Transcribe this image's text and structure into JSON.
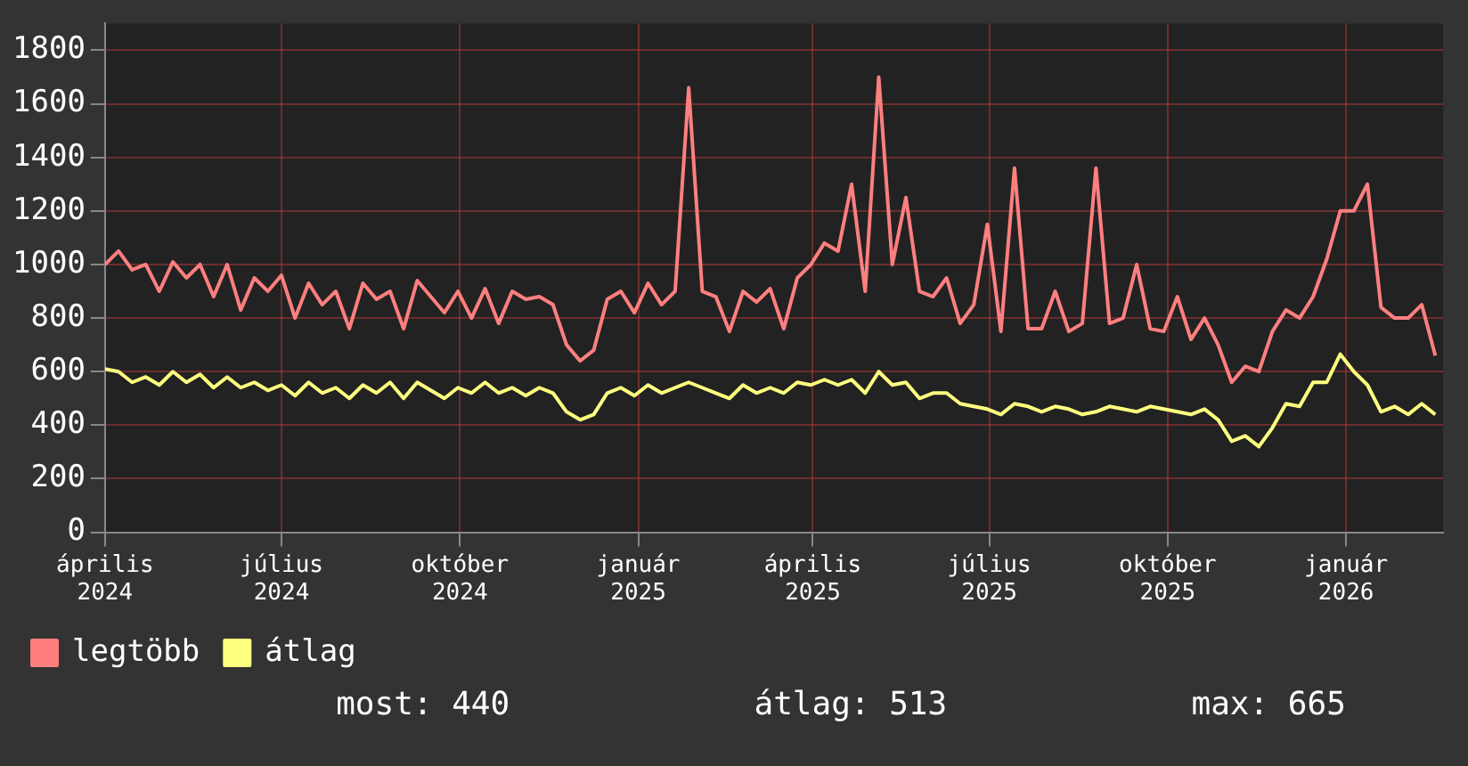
{
  "chart_data": {
    "type": "line",
    "x": [
      "2024-04-01",
      "2024-04-08",
      "2024-04-15",
      "2024-04-22",
      "2024-04-29",
      "2024-05-06",
      "2024-05-13",
      "2024-05-20",
      "2024-05-27",
      "2024-06-03",
      "2024-06-10",
      "2024-06-17",
      "2024-06-24",
      "2024-07-01",
      "2024-07-08",
      "2024-07-15",
      "2024-07-22",
      "2024-07-29",
      "2024-08-05",
      "2024-08-12",
      "2024-08-19",
      "2024-08-26",
      "2024-09-02",
      "2024-09-09",
      "2024-09-16",
      "2024-09-23",
      "2024-09-30",
      "2024-10-07",
      "2024-10-14",
      "2024-10-21",
      "2024-10-28",
      "2024-11-04",
      "2024-11-11",
      "2024-11-18",
      "2024-11-25",
      "2024-12-02",
      "2024-12-09",
      "2024-12-16",
      "2024-12-23",
      "2024-12-30",
      "2025-01-06",
      "2025-01-13",
      "2025-01-20",
      "2025-01-27",
      "2025-02-03",
      "2025-02-10",
      "2025-02-17",
      "2025-02-24",
      "2025-03-03",
      "2025-03-10",
      "2025-03-17",
      "2025-03-24",
      "2025-03-31",
      "2025-04-07",
      "2025-04-14",
      "2025-04-21",
      "2025-04-28",
      "2025-05-05",
      "2025-05-12",
      "2025-05-19",
      "2025-05-26",
      "2025-06-02",
      "2025-06-09",
      "2025-06-16",
      "2025-06-23",
      "2025-06-30",
      "2025-07-07",
      "2025-07-14",
      "2025-07-21",
      "2025-07-28",
      "2025-08-04",
      "2025-08-11",
      "2025-08-18",
      "2025-08-25",
      "2025-09-01",
      "2025-09-08",
      "2025-09-15",
      "2025-09-22",
      "2025-09-29",
      "2025-10-06",
      "2025-10-13",
      "2025-10-20",
      "2025-10-27",
      "2025-11-03",
      "2025-11-10",
      "2025-11-17",
      "2025-11-24",
      "2025-12-01",
      "2025-12-08",
      "2025-12-15",
      "2025-12-22",
      "2025-12-29",
      "2026-01-05",
      "2026-01-12",
      "2026-01-19",
      "2026-01-26",
      "2026-02-02",
      "2026-02-09",
      "2026-02-16"
    ],
    "series": [
      {
        "name": "legtöbb",
        "color": "#ff7f7f",
        "values": [
          1000,
          1050,
          980,
          1000,
          900,
          1010,
          950,
          1000,
          880,
          1000,
          830,
          950,
          900,
          960,
          800,
          930,
          850,
          900,
          760,
          930,
          870,
          900,
          760,
          940,
          880,
          820,
          900,
          800,
          910,
          780,
          900,
          870,
          880,
          850,
          700,
          640,
          680,
          870,
          900,
          820,
          930,
          850,
          900,
          1660,
          900,
          880,
          750,
          900,
          860,
          910,
          760,
          950,
          1000,
          1080,
          1050,
          1300,
          900,
          1700,
          1000,
          1250,
          900,
          880,
          950,
          780,
          850,
          1150,
          750,
          1360,
          760,
          760,
          900,
          750,
          780,
          1360,
          780,
          800,
          1000,
          760,
          750,
          880,
          720,
          800,
          700,
          560,
          620,
          600,
          750,
          830,
          800,
          880,
          1020,
          1200,
          1200,
          1300,
          840,
          800,
          800,
          850,
          660
        ]
      },
      {
        "name": "átlag",
        "color": "#ffff7f",
        "values": [
          610,
          600,
          560,
          580,
          550,
          600,
          560,
          590,
          540,
          580,
          540,
          560,
          530,
          550,
          510,
          560,
          520,
          540,
          500,
          550,
          520,
          560,
          500,
          560,
          530,
          500,
          540,
          520,
          560,
          520,
          540,
          510,
          540,
          520,
          450,
          420,
          440,
          520,
          540,
          510,
          550,
          520,
          540,
          560,
          540,
          520,
          500,
          550,
          520,
          540,
          520,
          560,
          550,
          570,
          550,
          570,
          520,
          600,
          550,
          560,
          500,
          520,
          520,
          480,
          470,
          460,
          440,
          480,
          470,
          450,
          470,
          460,
          440,
          450,
          470,
          460,
          450,
          470,
          460,
          450,
          440,
          460,
          420,
          340,
          360,
          320,
          390,
          480,
          470,
          560,
          560,
          665,
          600,
          550,
          450,
          470,
          440,
          480,
          440
        ]
      }
    ],
    "xlim": [
      "2024-04-01",
      "2026-02-20"
    ],
    "xticks": [
      {
        "value": "2024-04-01",
        "label": "április 2024"
      },
      {
        "value": "2024-07-01",
        "label": "július 2024"
      },
      {
        "value": "2024-10-01",
        "label": "október 2024"
      },
      {
        "value": "2025-01-01",
        "label": "január 2025"
      },
      {
        "value": "2025-04-01",
        "label": "április 2025"
      },
      {
        "value": "2025-07-01",
        "label": "július 2025"
      },
      {
        "value": "2025-10-01",
        "label": "október 2025"
      },
      {
        "value": "2026-01-01",
        "label": "január 2026"
      }
    ],
    "ylim": [
      0,
      1900
    ],
    "yticks": [
      0,
      200,
      400,
      600,
      800,
      1000,
      1200,
      1400,
      1600,
      1800
    ],
    "grid": true,
    "legend": "bottom",
    "marker": "none",
    "line_style": "solid",
    "annotations": [
      "most: 440",
      "átlag: 513",
      "max: 665"
    ]
  }
}
